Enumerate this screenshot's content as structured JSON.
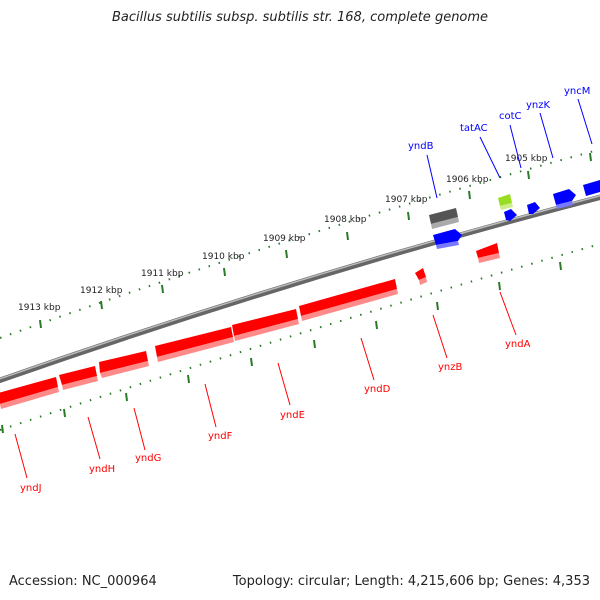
{
  "title": "Bacillus subtilis subsp. subtilis str. 168, complete genome",
  "footer": {
    "accession": "Accession: NC_000964",
    "topology": "Topology: circular; Length: 4,215,606 bp; Genes: 4,353"
  },
  "kbp_labels": [
    "1913 kbp",
    "1912 kbp",
    "1911 kbp",
    "1910 kbp",
    "1909 kbp",
    "1908 kbp",
    "1907 kbp",
    "1906 kbp",
    "1905 kbp"
  ],
  "forward_genes": [
    "yndB",
    "tatAC",
    "cotC",
    "ynzK",
    "yncM"
  ],
  "reverse_genes": [
    "yndJ",
    "yndH",
    "yndG",
    "yndF",
    "yndE",
    "yndD",
    "ynzB",
    "yndA"
  ],
  "colors": {
    "forward_gene": "#0000ff",
    "reverse_gene": "#ff0000",
    "pseudo_gene": "#555555",
    "rna_gene": "#99dd22",
    "ruler_tick": "#2a7a2a",
    "backbone": "#888888"
  }
}
